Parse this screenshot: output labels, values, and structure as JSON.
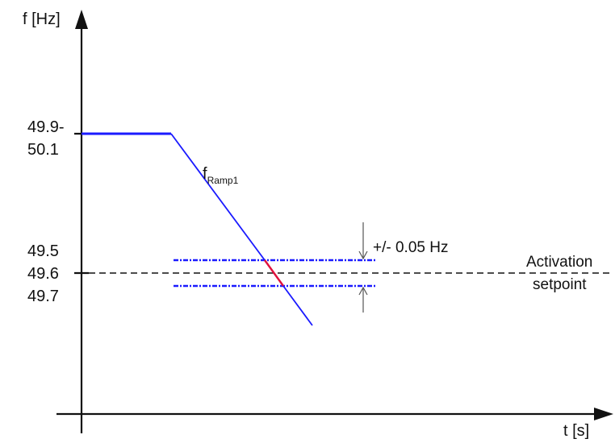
{
  "axes": {
    "y_label": "f [Hz]",
    "x_label": "t [s]"
  },
  "ticks": {
    "nominal_line1": "49.9-",
    "nominal_line2": "50.1",
    "band_upper": "49.5",
    "band_mid": "49.6",
    "band_lower": "49.7"
  },
  "ramp": {
    "main": "f",
    "subscript": "Ramp1"
  },
  "tolerance": {
    "label": "+/- 0.05 Hz"
  },
  "setpoint": {
    "line1": "Activation",
    "line2": "setpoint"
  },
  "colors": {
    "axis": "#111111",
    "curve": "#1a1aff",
    "crossing_segment": "#e0103c",
    "band_lines": "#1a1aff",
    "setpoint_line": "#111111",
    "tolerance_marker": "#555555"
  }
}
